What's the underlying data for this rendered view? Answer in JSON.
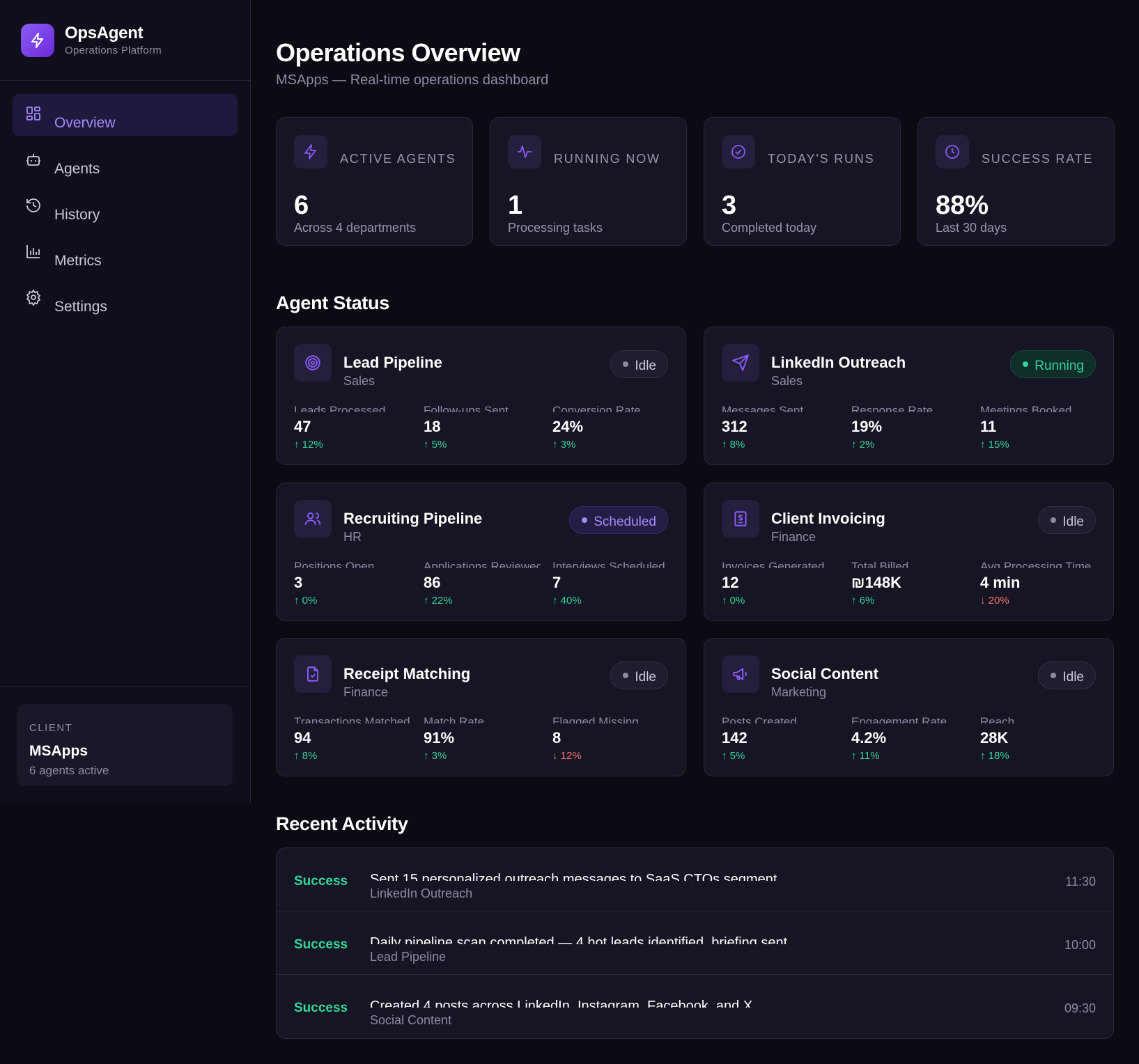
{
  "brand": {
    "name": "OpsAgent",
    "subtitle": "Operations Platform"
  },
  "nav": [
    {
      "label": "Overview",
      "icon": "grid-icon",
      "active": true
    },
    {
      "label": "Agents",
      "icon": "robot-icon"
    },
    {
      "label": "History",
      "icon": "history-icon"
    },
    {
      "label": "Metrics",
      "icon": "bar-chart-icon"
    },
    {
      "label": "Settings",
      "icon": "gear-icon"
    }
  ],
  "client": {
    "label": "CLIENT",
    "name": "MSApps",
    "sub": "6 agents active"
  },
  "page": {
    "title": "Operations Overview",
    "subtitle": "MSApps — Real-time operations dashboard"
  },
  "stats": [
    {
      "label": "ACTIVE AGENTS",
      "value": "6",
      "sub": "Across 4 departments",
      "icon": "lightning-icon"
    },
    {
      "label": "RUNNING NOW",
      "value": "1",
      "sub": "Processing tasks",
      "icon": "activity-icon"
    },
    {
      "label": "TODAY'S RUNS",
      "value": "3",
      "sub": "Completed today",
      "icon": "check-circle-icon"
    },
    {
      "label": "SUCCESS RATE",
      "value": "88%",
      "sub": "Last 30 days",
      "icon": "clock-icon"
    }
  ],
  "agent_status_title": "Agent Status",
  "agents": [
    {
      "name": "Lead Pipeline",
      "dept": "Sales",
      "status": "Idle",
      "icon": "target-icon",
      "metrics": [
        {
          "label": "Leads Processed",
          "value": "47",
          "change": "↑ 12%",
          "dir": "up"
        },
        {
          "label": "Follow-ups Sent",
          "value": "18",
          "change": "↑ 5%",
          "dir": "up"
        },
        {
          "label": "Conversion Rate",
          "value": "24%",
          "change": "↑ 3%",
          "dir": "up"
        }
      ]
    },
    {
      "name": "LinkedIn Outreach",
      "dept": "Sales",
      "status": "Running",
      "icon": "send-icon",
      "metrics": [
        {
          "label": "Messages Sent",
          "value": "312",
          "change": "↑ 8%",
          "dir": "up"
        },
        {
          "label": "Response Rate",
          "value": "19%",
          "change": "↑ 2%",
          "dir": "up"
        },
        {
          "label": "Meetings Booked",
          "value": "11",
          "change": "↑ 15%",
          "dir": "up"
        }
      ]
    },
    {
      "name": "Recruiting Pipeline",
      "dept": "HR",
      "status": "Scheduled",
      "icon": "users-icon",
      "metrics": [
        {
          "label": "Positions Open",
          "value": "3",
          "change": "↑ 0%",
          "dir": "up"
        },
        {
          "label": "Applications Reviewed",
          "value": "86",
          "change": "↑ 22%",
          "dir": "up"
        },
        {
          "label": "Interviews Scheduled",
          "value": "7",
          "change": "↑ 40%",
          "dir": "up"
        }
      ]
    },
    {
      "name": "Client Invoicing",
      "dept": "Finance",
      "status": "Idle",
      "icon": "invoice-icon",
      "metrics": [
        {
          "label": "Invoices Generated",
          "value": "12",
          "change": "↑ 0%",
          "dir": "up"
        },
        {
          "label": "Total Billed",
          "value": "₪148K",
          "change": "↑ 6%",
          "dir": "up"
        },
        {
          "label": "Avg Processing Time",
          "value": "4 min",
          "change": "↓ 20%",
          "dir": "down"
        }
      ]
    },
    {
      "name": "Receipt Matching",
      "dept": "Finance",
      "status": "Idle",
      "icon": "file-check-icon",
      "metrics": [
        {
          "label": "Transactions Matched",
          "value": "94",
          "change": "↑ 8%",
          "dir": "up"
        },
        {
          "label": "Match Rate",
          "value": "91%",
          "change": "↑ 3%",
          "dir": "up"
        },
        {
          "label": "Flagged Missing",
          "value": "8",
          "change": "↓ 12%",
          "dir": "down"
        }
      ]
    },
    {
      "name": "Social Content",
      "dept": "Marketing",
      "status": "Idle",
      "icon": "megaphone-icon",
      "metrics": [
        {
          "label": "Posts Created",
          "value": "142",
          "change": "↑ 5%",
          "dir": "up"
        },
        {
          "label": "Engagement Rate",
          "value": "4.2%",
          "change": "↑ 11%",
          "dir": "up"
        },
        {
          "label": "Reach",
          "value": "28K",
          "change": "↑ 18%",
          "dir": "up"
        }
      ]
    }
  ],
  "recent_activity_title": "Recent Activity",
  "activity": [
    {
      "status": "Success",
      "title": "Sent 15 personalized outreach messages to SaaS CTOs segment",
      "agent": "LinkedIn Outreach",
      "time": "11:30"
    },
    {
      "status": "Success",
      "title": "Daily pipeline scan completed — 4 hot leads identified, briefing sent",
      "agent": "Lead Pipeline",
      "time": "10:00"
    },
    {
      "status": "Success",
      "title": "Created 4 posts across LinkedIn, Instagram, Facebook, and X",
      "agent": "Social Content",
      "time": "09:30"
    }
  ],
  "colors": {
    "accent": "#8b5cf6",
    "success": "#34d399",
    "danger": "#f87171",
    "background": "#0b0b14"
  }
}
